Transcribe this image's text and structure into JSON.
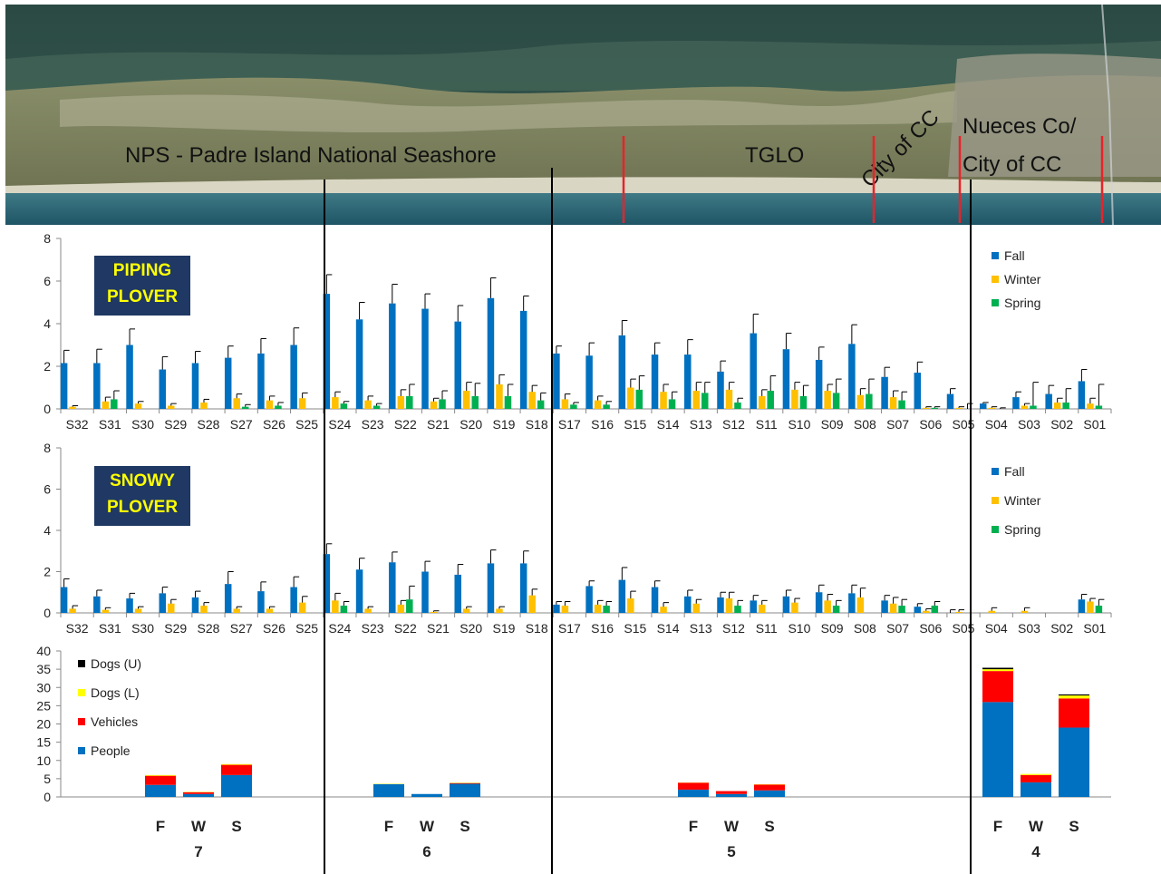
{
  "colors": {
    "fall": "#0070c0",
    "winter": "#ffc000",
    "spring": "#00b050",
    "people": "#0070c0",
    "vehicles": "#ff0000",
    "dogs_l": "#ffff00",
    "dogs_u": "#000000",
    "boundary_red": "#e8232a",
    "badge_bg": "#1f3864",
    "badge_text": "#ffff00"
  },
  "banner": {
    "labels": {
      "nps": "NPS - Padre Island National Seashore",
      "tglo": "TGLO",
      "city": "City of CC",
      "nueces_1": "Nueces Co/",
      "nueces_2": "City of CC"
    }
  },
  "chart_data": [
    {
      "type": "bar",
      "title": "PIPING\nPLOVER",
      "badge_line1": "PIPING",
      "badge_line2": "PLOVER",
      "ylim": [
        0,
        8
      ],
      "yticks": [
        0,
        2,
        4,
        6,
        8
      ],
      "legend_position": "top-right",
      "categories": [
        "S32",
        "S31",
        "S30",
        "S29",
        "S28",
        "S27",
        "S26",
        "S25",
        "S24",
        "S23",
        "S22",
        "S21",
        "S20",
        "S19",
        "S18",
        "S17",
        "S16",
        "S15",
        "S14",
        "S13",
        "S12",
        "S11",
        "S10",
        "S09",
        "S08",
        "S07",
        "S06",
        "S05",
        "S04",
        "S03",
        "S02",
        "S01"
      ],
      "series": [
        {
          "name": "Fall",
          "color": "#0070c0",
          "values": [
            2.15,
            2.15,
            3.0,
            1.85,
            2.15,
            2.4,
            2.6,
            3.0,
            5.4,
            4.2,
            4.95,
            4.7,
            4.1,
            5.2,
            4.6,
            2.6,
            2.5,
            3.45,
            2.55,
            2.55,
            1.75,
            3.55,
            2.8,
            2.3,
            3.05,
            1.5,
            1.7,
            0.7,
            0.25,
            0.55,
            0.7,
            1.3
          ],
          "errors": [
            0.6,
            0.65,
            0.75,
            0.6,
            0.55,
            0.55,
            0.7,
            0.8,
            0.9,
            0.8,
            0.9,
            0.7,
            0.75,
            0.95,
            0.7,
            0.35,
            0.6,
            0.7,
            0.55,
            0.7,
            0.5,
            0.9,
            0.75,
            0.6,
            0.9,
            0.45,
            0.5,
            0.25,
            0.05,
            0.25,
            0.4,
            0.55
          ]
        },
        {
          "name": "Winter",
          "color": "#ffc000",
          "values": [
            0.1,
            0.35,
            0.25,
            0.15,
            0.3,
            0.5,
            0.4,
            0.5,
            0.55,
            0.4,
            0.6,
            0.35,
            0.85,
            1.15,
            0.8,
            0.45,
            0.4,
            1.0,
            0.8,
            0.85,
            0.9,
            0.6,
            0.9,
            0.85,
            0.65,
            0.55,
            0.05,
            0.05,
            0.05,
            0.15,
            0.3,
            0.25
          ],
          "errors": [
            0.05,
            0.2,
            0.1,
            0.1,
            0.15,
            0.2,
            0.2,
            0.25,
            0.25,
            0.2,
            0.3,
            0.15,
            0.4,
            0.45,
            0.3,
            0.25,
            0.2,
            0.4,
            0.35,
            0.4,
            0.35,
            0.3,
            0.35,
            0.3,
            0.3,
            0.3,
            0.05,
            0.05,
            0.05,
            0.1,
            0.2,
            0.25
          ]
        },
        {
          "name": "Spring",
          "color": "#00b050",
          "values": [
            0.0,
            0.45,
            0.0,
            0.0,
            0.0,
            0.1,
            0.15,
            0.0,
            0.25,
            0.15,
            0.6,
            0.45,
            0.6,
            0.6,
            0.4,
            0.2,
            0.2,
            0.9,
            0.45,
            0.75,
            0.3,
            0.85,
            0.6,
            0.75,
            0.7,
            0.4,
            0.05,
            0.0,
            0.0,
            0.15,
            0.3,
            0.15
          ],
          "errors": [
            0,
            0.4,
            0,
            0,
            0,
            0.1,
            0.15,
            0,
            0.1,
            0.1,
            0.55,
            0.4,
            0.6,
            0.55,
            0.35,
            0.1,
            0.15,
            0.65,
            0.35,
            0.5,
            0.2,
            0.7,
            0.5,
            0.65,
            0.7,
            0.4,
            0.05,
            0.25,
            0.05,
            1.1,
            0.65,
            1.0
          ]
        }
      ]
    },
    {
      "type": "bar",
      "title": "SNOWY\nPLOVER",
      "badge_line1": "SNOWY",
      "badge_line2": "PLOVER",
      "ylim": [
        0,
        8
      ],
      "yticks": [
        0,
        2,
        4,
        6,
        8
      ],
      "legend_position": "top-right",
      "categories": [
        "S32",
        "S31",
        "S30",
        "S29",
        "S28",
        "S27",
        "S26",
        "S25",
        "S24",
        "S23",
        "S22",
        "S21",
        "S20",
        "S19",
        "S18",
        "S17",
        "S16",
        "S15",
        "S14",
        "S13",
        "S12",
        "S11",
        "S10",
        "S09",
        "S08",
        "S07",
        "S06",
        "S05",
        "S04",
        "S03",
        "S02",
        "S01"
      ],
      "series": [
        {
          "name": "Fall",
          "color": "#0070c0",
          "values": [
            1.25,
            0.8,
            0.7,
            0.95,
            0.75,
            1.4,
            1.05,
            1.25,
            2.85,
            2.1,
            2.45,
            2.0,
            1.85,
            2.4,
            2.4,
            0.4,
            1.3,
            1.6,
            1.25,
            0.8,
            0.75,
            0.6,
            0.8,
            1.0,
            0.95,
            0.6,
            0.3,
            0.0,
            0.0,
            0.0,
            0.0,
            0.65
          ],
          "errors": [
            0.4,
            0.3,
            0.25,
            0.3,
            0.3,
            0.6,
            0.45,
            0.5,
            0.5,
            0.55,
            0.5,
            0.5,
            0.5,
            0.65,
            0.6,
            0.15,
            0.25,
            0.6,
            0.3,
            0.3,
            0.25,
            0.25,
            0.3,
            0.35,
            0.4,
            0.25,
            0.15,
            0.15,
            0.0,
            0.0,
            0.0,
            0.25
          ]
        },
        {
          "name": "Winter",
          "color": "#ffc000",
          "values": [
            0.2,
            0.15,
            0.2,
            0.45,
            0.35,
            0.2,
            0.2,
            0.5,
            0.6,
            0.2,
            0.4,
            0.05,
            0.2,
            0.2,
            0.85,
            0.35,
            0.4,
            0.7,
            0.3,
            0.45,
            0.7,
            0.4,
            0.5,
            0.6,
            0.75,
            0.45,
            0.1,
            0.05,
            0.1,
            0.1,
            0.0,
            0.55
          ],
          "errors": [
            0.15,
            0.1,
            0.1,
            0.2,
            0.15,
            0.1,
            0.1,
            0.3,
            0.35,
            0.1,
            0.2,
            0.05,
            0.1,
            0.1,
            0.3,
            0.2,
            0.2,
            0.35,
            0.2,
            0.2,
            0.3,
            0.2,
            0.2,
            0.3,
            0.45,
            0.3,
            0.1,
            0.1,
            0.15,
            0.15,
            0.0,
            0.15
          ]
        },
        {
          "name": "Spring",
          "color": "#00b050",
          "values": [
            0.0,
            0.0,
            0.0,
            0.0,
            0.0,
            0.0,
            0.0,
            0.0,
            0.35,
            0.0,
            0.65,
            0.0,
            0.0,
            0.0,
            0.0,
            0.0,
            0.35,
            0.0,
            0.0,
            0.0,
            0.35,
            0.0,
            0.0,
            0.35,
            0.0,
            0.35,
            0.35,
            0.0,
            0.0,
            0.0,
            0.0,
            0.35
          ],
          "errors": [
            0,
            0,
            0,
            0,
            0,
            0,
            0,
            0,
            0.2,
            0,
            0.65,
            0,
            0,
            0,
            0,
            0,
            0.2,
            0,
            0,
            0,
            0.25,
            0,
            0,
            0.25,
            0,
            0.3,
            0.2,
            0,
            0,
            0,
            0,
            0.3
          ]
        }
      ]
    },
    {
      "type": "bar",
      "stacked": true,
      "ylim": [
        0,
        40
      ],
      "yticks": [
        0,
        5,
        10,
        15,
        20,
        25,
        30,
        35,
        40
      ],
      "legend_position": "top-left",
      "groups": [
        "7",
        "6",
        "5",
        "4"
      ],
      "season_labels": [
        "F",
        "W",
        "S"
      ],
      "series": [
        {
          "name": "People",
          "color": "#0070c0",
          "values": [
            [
              3.3,
              0.8,
              6.0
            ],
            [
              3.5,
              0.8,
              3.6
            ],
            [
              2.0,
              0.8,
              1.8
            ],
            [
              26.0,
              4.0,
              19.0
            ]
          ]
        },
        {
          "name": "Vehicles",
          "color": "#ff0000",
          "values": [
            [
              2.5,
              0.5,
              2.8
            ],
            [
              0.0,
              0.0,
              0.2
            ],
            [
              1.9,
              0.8,
              1.6
            ],
            [
              8.5,
              2.0,
              8.0
            ]
          ]
        },
        {
          "name": "Dogs (L)",
          "color": "#ffff00",
          "values": [
            [
              0.2,
              0.1,
              0.2
            ],
            [
              0.1,
              0.0,
              0.1
            ],
            [
              0.05,
              0.0,
              0.1
            ],
            [
              0.5,
              0.3,
              0.8
            ]
          ]
        },
        {
          "name": "Dogs (U)",
          "color": "#000000",
          "values": [
            [
              0.0,
              0.0,
              0.0
            ],
            [
              0.0,
              0.0,
              0.0
            ],
            [
              0.0,
              0.0,
              0.0
            ],
            [
              0.4,
              0.0,
              0.3
            ]
          ]
        }
      ]
    }
  ]
}
